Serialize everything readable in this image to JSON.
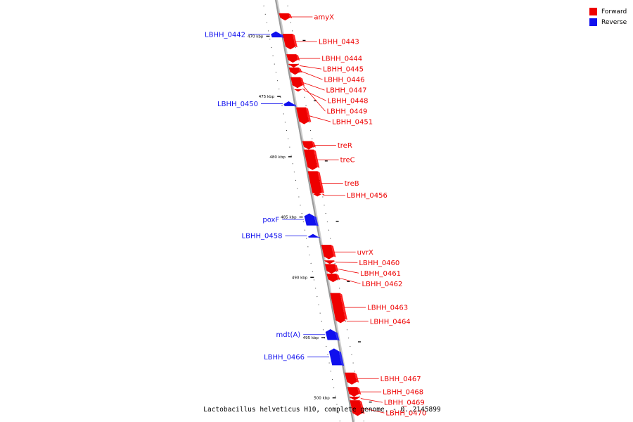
{
  "caption": "Lactobacillus helveticus H10, complete genome. - 0..2145899",
  "legend": [
    {
      "label": "Forward",
      "color": "#ee0000"
    },
    {
      "label": "Reverse",
      "color": "#1010ee"
    }
  ],
  "colors": {
    "forward": "#ee0000",
    "reverse": "#1010ee",
    "axis": "#999999"
  },
  "scale": {
    "start_kbp": 467,
    "end_kbp": 502,
    "ticks": [
      470,
      475,
      480,
      485,
      490,
      495,
      500
    ],
    "tick_unit": "kbp"
  },
  "genes": [
    {
      "name": "amyX",
      "strand": "forward",
      "start": 468.1,
      "end": 468.7
    },
    {
      "name": "LBHH_0442",
      "strand": "reverse",
      "start": 469.6,
      "end": 470.1
    },
    {
      "name": "LBHH_0443",
      "strand": "forward",
      "start": 469.8,
      "end": 471.1
    },
    {
      "name": "LBHH_0444",
      "strand": "forward",
      "start": 471.5,
      "end": 472.2
    },
    {
      "name": "LBHH_0445",
      "strand": "forward",
      "start": 472.3,
      "end": 472.6
    },
    {
      "name": "LBHH_0446",
      "strand": "forward",
      "start": 472.6,
      "end": 473.2
    },
    {
      "name": "LBHH_0447",
      "strand": "forward",
      "start": 473.4,
      "end": 474.3
    },
    {
      "name": "LBHH_0448",
      "strand": "forward",
      "start": 474.4,
      "end": 474.6
    },
    {
      "name": "LBHH_0449",
      "strand": "forward",
      "start": 474.0,
      "end": 474.3
    },
    {
      "name": "LBHH_0450",
      "strand": "reverse",
      "start": 475.4,
      "end": 475.8
    },
    {
      "name": "LBHH_0451",
      "strand": "forward",
      "start": 475.9,
      "end": 477.3
    },
    {
      "name": "treR",
      "strand": "forward",
      "start": 478.7,
      "end": 479.4
    },
    {
      "name": "treC",
      "strand": "forward",
      "start": 479.4,
      "end": 481.1
    },
    {
      "name": "treB",
      "strand": "forward",
      "start": 481.2,
      "end": 483.2
    },
    {
      "name": "LBHH_0456",
      "strand": "forward",
      "start": 483.1,
      "end": 483.3
    },
    {
      "name": "poxF",
      "strand": "reverse",
      "start": 484.7,
      "end": 485.7
    },
    {
      "name": "LBHH_0458",
      "strand": "reverse",
      "start": 486.4,
      "end": 486.7
    },
    {
      "name": "uvrX",
      "strand": "forward",
      "start": 487.3,
      "end": 488.5
    },
    {
      "name": "LBHH_0460",
      "strand": "forward",
      "start": 488.6,
      "end": 488.9
    },
    {
      "name": "LBHH_0461",
      "strand": "forward",
      "start": 488.9,
      "end": 489.7
    },
    {
      "name": "LBHH_0462",
      "strand": "forward",
      "start": 489.7,
      "end": 490.4
    },
    {
      "name": "LBHH_0463",
      "strand": "forward",
      "start": 491.3,
      "end": 493.7
    },
    {
      "name": "LBHH_0464",
      "strand": "forward",
      "start": 493.5,
      "end": 493.8
    },
    {
      "name": "mdt(A)",
      "strand": "reverse",
      "start": 494.3,
      "end": 495.2
    },
    {
      "name": "LBHH_0466",
      "strand": "reverse",
      "start": 495.9,
      "end": 497.3
    },
    {
      "name": "LBHH_0467",
      "strand": "forward",
      "start": 497.9,
      "end": 498.9
    },
    {
      "name": "LBHH_0468",
      "strand": "forward",
      "start": 499.1,
      "end": 499.9
    },
    {
      "name": "LBHH_0469",
      "strand": "forward",
      "start": 499.9,
      "end": 500.2
    },
    {
      "name": "LBHH_0470",
      "strand": "forward",
      "start": 500.2,
      "end": 501.5
    }
  ]
}
